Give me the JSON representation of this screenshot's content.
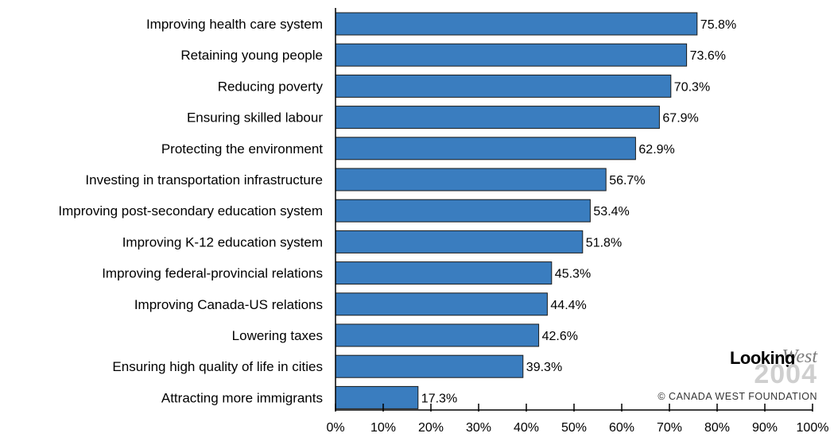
{
  "chart_data": {
    "type": "bar",
    "orientation": "horizontal",
    "categories": [
      "Improving health care system",
      "Retaining young people",
      "Reducing poverty",
      "Ensuring skilled labour",
      "Protecting the environment",
      "Investing in transportation infrastructure",
      "Improving post-secondary education system",
      "Improving K-12 education system",
      "Improving federal-provincial relations",
      "Improving Canada-US relations",
      "Lowering taxes",
      "Ensuring high quality of life in cities",
      "Attracting more immigrants"
    ],
    "values": [
      75.8,
      73.6,
      70.3,
      67.9,
      62.9,
      56.7,
      53.4,
      51.8,
      45.3,
      44.4,
      42.6,
      39.3,
      17.3
    ],
    "value_labels": [
      "75.8%",
      "73.6%",
      "70.3%",
      "67.9%",
      "62.9%",
      "56.7%",
      "53.4%",
      "51.8%",
      "45.3%",
      "44.4%",
      "42.6%",
      "39.3%",
      "17.3%"
    ],
    "xlim": [
      0,
      100
    ],
    "x_ticks": [
      0,
      10,
      20,
      30,
      40,
      50,
      60,
      70,
      80,
      90,
      100
    ],
    "x_tick_labels": [
      "0%",
      "10%",
      "20%",
      "30%",
      "40%",
      "50%",
      "60%",
      "70%",
      "80%",
      "90%",
      "100%"
    ],
    "title": "",
    "xlabel": "",
    "ylabel": "",
    "grid": false,
    "bar_color": "#3a7dbf"
  },
  "logo": {
    "looking": "Looking",
    "west": "West",
    "year": "2004",
    "copyright": "© CANADA WEST FOUNDATION"
  }
}
